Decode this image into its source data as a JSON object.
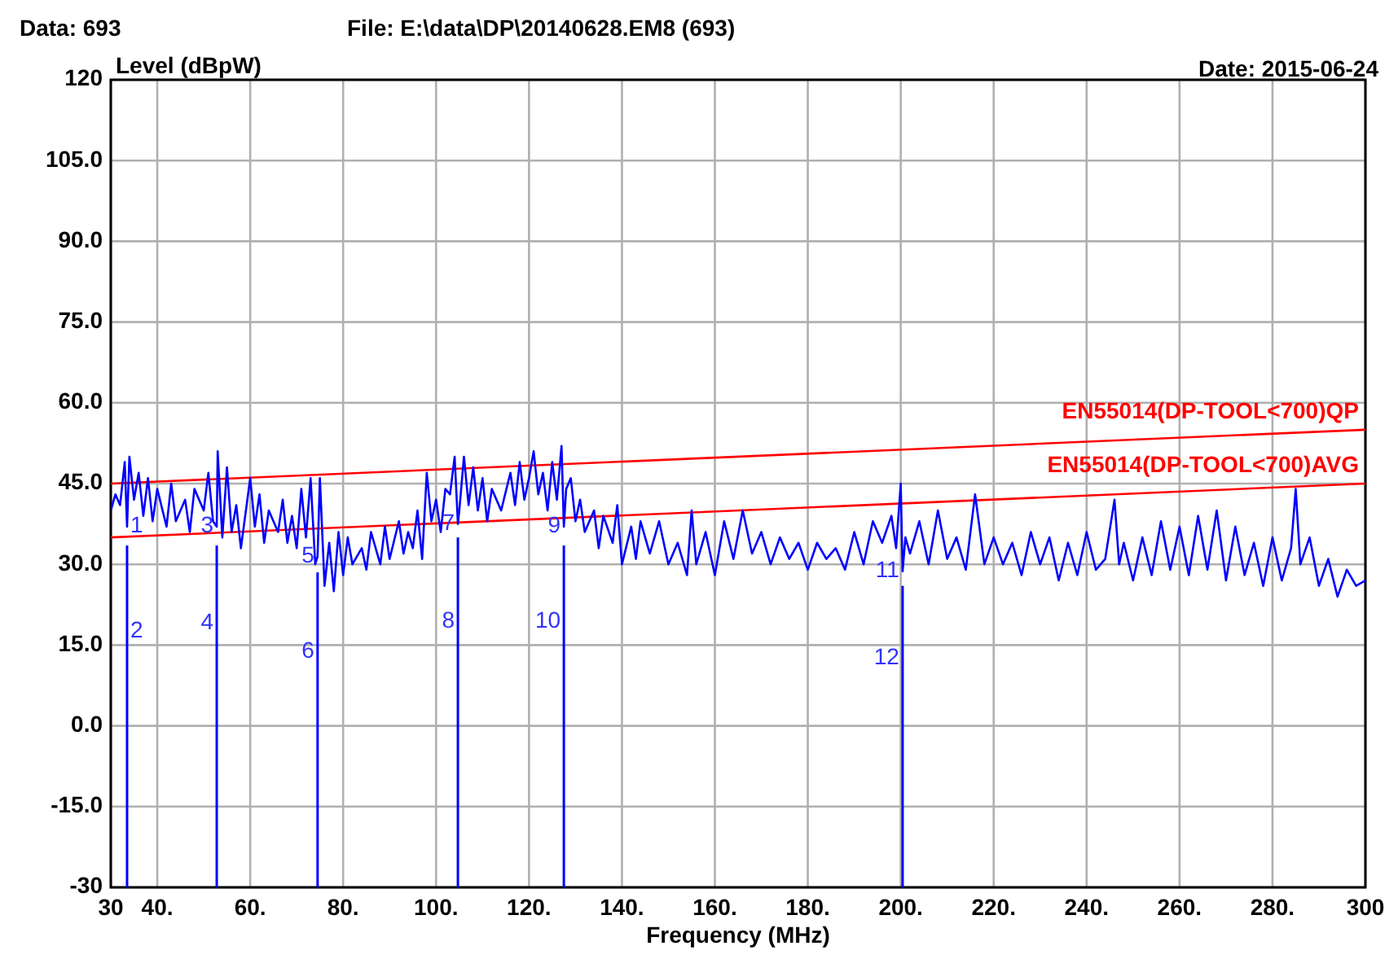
{
  "chart_data": {
    "type": "line",
    "xlabel": "Frequency (MHz)",
    "ylabel": "Level (dBpW)",
    "annotations": [
      "Data: 693",
      "File: E:\\data\\DP\\20140628.EM8  (693)",
      "Date: 2015-06-24",
      {
        "text": "1",
        "x": 33.5,
        "y": 37
      },
      {
        "text": "2",
        "x": 33.5,
        "y": 17.5
      },
      {
        "text": "3",
        "x": 52.8,
        "y": 37
      },
      {
        "text": "4",
        "x": 52.8,
        "y": 19
      },
      {
        "text": "5",
        "x": 74.5,
        "y": 31.5
      },
      {
        "text": "6",
        "x": 74.5,
        "y": 13.8
      },
      {
        "text": "7",
        "x": 104.7,
        "y": 37.5
      },
      {
        "text": "8",
        "x": 104.7,
        "y": 19.3
      },
      {
        "text": "9",
        "x": 127.5,
        "y": 37
      },
      {
        "text": "10",
        "x": 127.5,
        "y": 19.3
      },
      {
        "text": "11",
        "x": 200.4,
        "y": 28.7
      },
      {
        "text": "12",
        "x": 200.4,
        "y": 12.6
      }
    ],
    "xlim": [
      30,
      300
    ],
    "ylim": [
      -30,
      120
    ],
    "xticks": [
      30,
      {
        "value": 40,
        "label": "40."
      },
      {
        "value": 60,
        "label": "60."
      },
      {
        "value": 80,
        "label": "80."
      },
      {
        "value": 100,
        "label": "100."
      },
      {
        "value": 120,
        "label": "120."
      },
      {
        "value": 140,
        "label": "140."
      },
      {
        "value": 160,
        "label": "160."
      },
      {
        "value": 180,
        "label": "180."
      },
      {
        "value": 200,
        "label": "200."
      },
      {
        "value": 220,
        "label": "220."
      },
      {
        "value": 240,
        "label": "240."
      },
      {
        "value": 260,
        "label": "260."
      },
      {
        "value": 280,
        "label": "280."
      },
      300
    ],
    "yticks": [
      -30,
      {
        "value": -15,
        "label": "-15.0"
      },
      {
        "value": 0,
        "label": "0.0"
      },
      {
        "value": 15,
        "label": "15.0"
      },
      {
        "value": 30,
        "label": "30.0"
      },
      {
        "value": 45,
        "label": "45.0"
      },
      {
        "value": 60,
        "label": "60.0"
      },
      {
        "value": 75,
        "label": "75.0"
      },
      {
        "value": 90,
        "label": "90.0"
      },
      {
        "value": 105,
        "label": "105.0"
      },
      120
    ],
    "grid": true,
    "marker": "none",
    "line_style": "solid",
    "series": [
      {
        "type": "bar",
        "color": "#0000ff",
        "x": [
          33.5,
          52.8,
          74.5,
          104.7,
          127.5,
          200.4
        ],
        "base": [
          -30,
          -30,
          -30,
          -30,
          -30,
          -30
        ],
        "values": [
          63.5,
          63.5,
          58.5,
          65,
          63.5,
          56
        ]
      },
      {
        "name": "EN55014(DP-TOOL<700)QP",
        "color": "#ff0000",
        "x": [
          30,
          300
        ],
        "values": [
          45,
          55
        ]
      },
      {
        "name": "EN55014(DP-TOOL<700)AVG",
        "color": "#ff0000",
        "x": [
          30,
          300
        ],
        "values": [
          35,
          45
        ]
      },
      {
        "color": "#0000ff",
        "x": [
          30,
          31,
          32,
          33,
          33.5,
          34,
          35,
          36,
          37,
          38,
          39,
          40,
          42,
          43,
          44,
          46,
          47,
          48,
          50,
          51,
          52,
          52.8,
          53,
          54,
          55,
          56,
          57,
          58,
          60,
          61,
          62,
          63,
          64,
          66,
          67,
          68,
          69,
          70,
          71,
          72,
          73,
          74,
          74.5,
          75,
          76,
          77,
          78,
          79,
          80,
          81,
          82,
          84,
          85,
          86,
          88,
          89,
          90,
          92,
          93,
          94,
          95,
          96,
          97,
          98,
          99,
          100,
          101,
          102,
          103,
          104,
          104.7,
          105,
          106,
          107,
          108,
          109,
          110,
          111,
          112,
          114,
          116,
          117,
          118,
          119,
          120,
          121,
          122,
          123,
          124,
          125,
          126,
          127,
          127.5,
          128,
          129,
          130,
          131,
          132,
          134,
          135,
          136,
          138,
          139,
          140,
          142,
          143,
          144,
          146,
          148,
          150,
          152,
          154,
          155,
          156,
          158,
          160,
          162,
          164,
          166,
          168,
          170,
          172,
          174,
          176,
          178,
          180,
          182,
          184,
          186,
          188,
          190,
          192,
          194,
          196,
          198,
          199,
          200,
          200.4,
          201,
          202,
          204,
          206,
          208,
          210,
          212,
          214,
          216,
          218,
          220,
          222,
          224,
          226,
          228,
          230,
          232,
          234,
          236,
          238,
          240,
          242,
          244,
          246,
          247,
          248,
          250,
          252,
          254,
          256,
          258,
          260,
          262,
          264,
          266,
          268,
          270,
          272,
          274,
          276,
          278,
          280,
          282,
          284,
          285,
          286,
          288,
          290,
          292,
          294,
          296,
          298,
          300
        ],
        "values": [
          40,
          43,
          41,
          49,
          37,
          50,
          42,
          47,
          39,
          46,
          38,
          44,
          37,
          45,
          38,
          42,
          36,
          44,
          40,
          47,
          38,
          37,
          51,
          35,
          48,
          36,
          41,
          33,
          46,
          37,
          43,
          34,
          40,
          36,
          42,
          34,
          39,
          33,
          44,
          35,
          46,
          30,
          31.5,
          46,
          26,
          34,
          25,
          36,
          28,
          35,
          30,
          33,
          29,
          36,
          30,
          37,
          31,
          38,
          32,
          36,
          33,
          40,
          31,
          47,
          38,
          42,
          36,
          44,
          43,
          50,
          37.5,
          40,
          50,
          41,
          48,
          40,
          46,
          38,
          44,
          40,
          47,
          41,
          49,
          42,
          46,
          51,
          43,
          47,
          40,
          49,
          42,
          52,
          37,
          44,
          46,
          38,
          42,
          36,
          40,
          33,
          39,
          34,
          41,
          30,
          37,
          31,
          38,
          32,
          38,
          30,
          34,
          28,
          40,
          30,
          36,
          28,
          38,
          31,
          40,
          32,
          36,
          30,
          35,
          31,
          34,
          29,
          34,
          31,
          33,
          29,
          36,
          30,
          38,
          34,
          39,
          33,
          45,
          28.7,
          35,
          32,
          38,
          30,
          40,
          31,
          35,
          29,
          43,
          30,
          35,
          30,
          34,
          28,
          36,
          30,
          35,
          27,
          34,
          28,
          36,
          29,
          31,
          42,
          30,
          34,
          27,
          35,
          28,
          38,
          29,
          37,
          28,
          39,
          29,
          40,
          27,
          37,
          28,
          34,
          26,
          35,
          27,
          33,
          44,
          30,
          35,
          26,
          31,
          24,
          29,
          26,
          27
        ]
      }
    ]
  }
}
